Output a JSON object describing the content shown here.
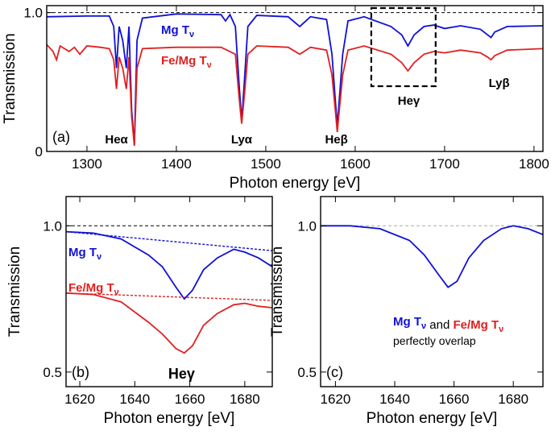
{
  "colors": {
    "mg": "#1010d8",
    "femg": "#e02020",
    "axis": "#000000"
  },
  "chart_data": [
    {
      "type": "line",
      "panel": "(a)",
      "xlabel": "Photon energy [eV]",
      "ylabel": "Transmission",
      "xlim": [
        1255,
        1810
      ],
      "ylim": [
        0,
        1.05
      ],
      "xticks": [
        "1300",
        "1400",
        "1500",
        "1600",
        "1700",
        "1800"
      ],
      "yticks": [
        "0",
        "1.0"
      ],
      "reference_line": 1.0,
      "line_labels": [
        {
          "text": "Heα",
          "x": 1333
        },
        {
          "text": "Lyα",
          "x": 1473
        },
        {
          "text": "Heβ",
          "x": 1579
        },
        {
          "text": "Heγ",
          "x": 1660
        },
        {
          "text": "Lyβ",
          "x": 1752
        }
      ],
      "inset_box": {
        "x": [
          1618,
          1690
        ],
        "y": [
          0.5,
          1.1
        ]
      },
      "series": [
        {
          "name": "Mg Tν",
          "points": [
            [
              1255,
              0.97
            ],
            [
              1300,
              0.975
            ],
            [
              1325,
              0.975
            ],
            [
              1330,
              0.9
            ],
            [
              1333,
              0.6
            ],
            [
              1336,
              0.9
            ],
            [
              1340,
              0.8
            ],
            [
              1344,
              0.6
            ],
            [
              1347,
              0.9
            ],
            [
              1350,
              0.3
            ],
            [
              1353,
              0.05
            ],
            [
              1356,
              0.8
            ],
            [
              1362,
              0.96
            ],
            [
              1400,
              0.99
            ],
            [
              1450,
              0.985
            ],
            [
              1455,
              0.94
            ],
            [
              1460,
              0.985
            ],
            [
              1466,
              0.9
            ],
            [
              1470,
              0.5
            ],
            [
              1473,
              0.22
            ],
            [
              1476,
              0.5
            ],
            [
              1480,
              0.9
            ],
            [
              1490,
              0.98
            ],
            [
              1525,
              0.97
            ],
            [
              1538,
              0.9
            ],
            [
              1550,
              0.97
            ],
            [
              1568,
              0.95
            ],
            [
              1574,
              0.7
            ],
            [
              1578,
              0.35
            ],
            [
              1580,
              0.19
            ],
            [
              1582,
              0.35
            ],
            [
              1586,
              0.7
            ],
            [
              1592,
              0.94
            ],
            [
              1610,
              0.97
            ],
            [
              1640,
              0.9
            ],
            [
              1652,
              0.84
            ],
            [
              1659,
              0.76
            ],
            [
              1666,
              0.84
            ],
            [
              1677,
              0.9
            ],
            [
              1688,
              0.91
            ],
            [
              1700,
              0.885
            ],
            [
              1718,
              0.905
            ],
            [
              1740,
              0.88
            ],
            [
              1748,
              0.84
            ],
            [
              1752,
              0.82
            ],
            [
              1756,
              0.86
            ],
            [
              1770,
              0.9
            ],
            [
              1810,
              0.905
            ]
          ]
        },
        {
          "name": "Fe/Mg Tν",
          "points": [
            [
              1255,
              0.77
            ],
            [
              1262,
              0.72
            ],
            [
              1266,
              0.66
            ],
            [
              1270,
              0.76
            ],
            [
              1280,
              0.72
            ],
            [
              1286,
              0.75
            ],
            [
              1292,
              0.7
            ],
            [
              1300,
              0.76
            ],
            [
              1315,
              0.75
            ],
            [
              1325,
              0.74
            ],
            [
              1330,
              0.66
            ],
            [
              1333,
              0.45
            ],
            [
              1336,
              0.68
            ],
            [
              1340,
              0.6
            ],
            [
              1344,
              0.45
            ],
            [
              1347,
              0.68
            ],
            [
              1350,
              0.25
            ],
            [
              1353,
              0.04
            ],
            [
              1356,
              0.6
            ],
            [
              1362,
              0.74
            ],
            [
              1400,
              0.75
            ],
            [
              1450,
              0.75
            ],
            [
              1466,
              0.7
            ],
            [
              1470,
              0.4
            ],
            [
              1473,
              0.2
            ],
            [
              1476,
              0.4
            ],
            [
              1480,
              0.7
            ],
            [
              1490,
              0.76
            ],
            [
              1525,
              0.75
            ],
            [
              1538,
              0.7
            ],
            [
              1550,
              0.75
            ],
            [
              1568,
              0.73
            ],
            [
              1574,
              0.55
            ],
            [
              1578,
              0.28
            ],
            [
              1580,
              0.14
            ],
            [
              1582,
              0.28
            ],
            [
              1586,
              0.55
            ],
            [
              1592,
              0.73
            ],
            [
              1610,
              0.76
            ],
            [
              1640,
              0.7
            ],
            [
              1652,
              0.64
            ],
            [
              1659,
              0.58
            ],
            [
              1666,
              0.64
            ],
            [
              1677,
              0.7
            ],
            [
              1688,
              0.72
            ],
            [
              1700,
              0.71
            ],
            [
              1718,
              0.73
            ],
            [
              1740,
              0.71
            ],
            [
              1748,
              0.68
            ],
            [
              1752,
              0.66
            ],
            [
              1756,
              0.69
            ],
            [
              1770,
              0.73
            ],
            [
              1810,
              0.74
            ]
          ]
        }
      ]
    },
    {
      "type": "line",
      "panel": "(b)",
      "xlabel": "Photon energy [eV]",
      "ylabel": "Transmission",
      "xlim": [
        1615,
        1690
      ],
      "ylim": [
        0.45,
        1.1
      ],
      "xticks": [
        "1620",
        "1640",
        "1660",
        "1680"
      ],
      "yticks": [
        "0.5",
        "1.0"
      ],
      "reference_line": 1.0,
      "line_label": "Heγ",
      "series": [
        {
          "name": "Mg Tν",
          "points": [
            [
              1615,
              0.98
            ],
            [
              1625,
              0.975
            ],
            [
              1635,
              0.955
            ],
            [
              1645,
              0.9
            ],
            [
              1650,
              0.86
            ],
            [
              1655,
              0.79
            ],
            [
              1658,
              0.75
            ],
            [
              1661,
              0.78
            ],
            [
              1665,
              0.85
            ],
            [
              1670,
              0.89
            ],
            [
              1676,
              0.92
            ],
            [
              1680,
              0.91
            ],
            [
              1685,
              0.89
            ],
            [
              1690,
              0.86
            ]
          ]
        },
        {
          "name": "Mg continuum",
          "dashed": true,
          "points": [
            [
              1615,
              0.98
            ],
            [
              1690,
              0.915
            ]
          ]
        },
        {
          "name": "Fe/Mg Tν",
          "points": [
            [
              1615,
              0.77
            ],
            [
              1625,
              0.765
            ],
            [
              1635,
              0.74
            ],
            [
              1645,
              0.67
            ],
            [
              1650,
              0.63
            ],
            [
              1655,
              0.58
            ],
            [
              1658,
              0.565
            ],
            [
              1661,
              0.59
            ],
            [
              1665,
              0.66
            ],
            [
              1670,
              0.7
            ],
            [
              1676,
              0.73
            ],
            [
              1680,
              0.735
            ],
            [
              1685,
              0.725
            ],
            [
              1690,
              0.72
            ]
          ]
        },
        {
          "name": "Fe/Mg continuum",
          "dashed": true,
          "points": [
            [
              1615,
              0.77
            ],
            [
              1690,
              0.745
            ]
          ]
        }
      ]
    },
    {
      "type": "line",
      "panel": "(c)",
      "xlabel": "Photon energy [eV]",
      "ylabel": "Transmission",
      "xlim": [
        1615,
        1690
      ],
      "ylim": [
        0.45,
        1.1
      ],
      "xticks": [
        "1620",
        "1640",
        "1660",
        "1680"
      ],
      "yticks": [
        "0.5",
        "1.0"
      ],
      "reference_line": 1.0,
      "annotation": {
        "mg": "Mg Tν",
        "and": "and",
        "femg": "Fe/Mg Tν",
        "line2": "perfectly overlap"
      },
      "series": [
        {
          "name": "Mg Tν",
          "points": [
            [
              1615,
              1.0
            ],
            [
              1625,
              1.0
            ],
            [
              1635,
              0.99
            ],
            [
              1645,
              0.95
            ],
            [
              1650,
              0.9
            ],
            [
              1655,
              0.83
            ],
            [
              1658,
              0.79
            ],
            [
              1661,
              0.81
            ],
            [
              1665,
              0.89
            ],
            [
              1670,
              0.95
            ],
            [
              1676,
              0.99
            ],
            [
              1680,
              1.0
            ],
            [
              1685,
              0.99
            ],
            [
              1690,
              0.97
            ]
          ]
        }
      ]
    }
  ]
}
